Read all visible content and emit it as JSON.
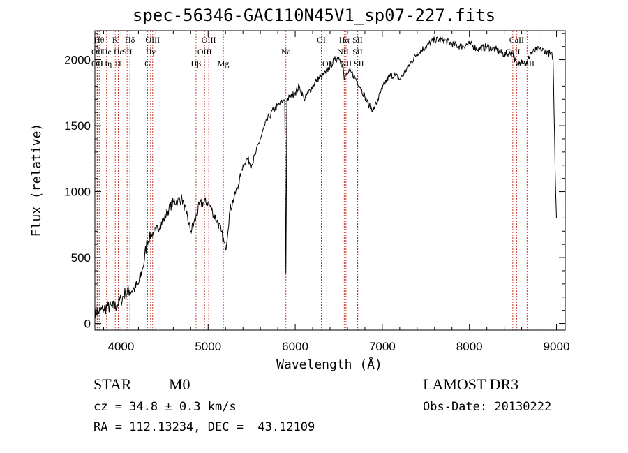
{
  "chart_data": {
    "type": "line",
    "title": "spec-56346-GAC110N45V1_sp07-227.fits",
    "xlabel": "Wavelength (Å)",
    "ylabel": "Flux (relative)",
    "xlim": [
      3700,
      9100
    ],
    "ylim": [
      -50,
      2220
    ],
    "xticks": [
      4000,
      5000,
      6000,
      7000,
      8000,
      9000
    ],
    "yticks": [
      0,
      500,
      1000,
      1500,
      2000
    ],
    "series": [
      {
        "name": "flux",
        "x": [
          3700,
          3750,
          3800,
          3850,
          3900,
          3950,
          4000,
          4050,
          4100,
          4150,
          4200,
          4250,
          4300,
          4350,
          4400,
          4450,
          4500,
          4550,
          4600,
          4650,
          4700,
          4750,
          4800,
          4850,
          4900,
          4950,
          5000,
          5050,
          5100,
          5150,
          5200,
          5250,
          5300,
          5350,
          5400,
          5450,
          5500,
          5550,
          5600,
          5650,
          5700,
          5750,
          5800,
          5850,
          5880,
          5893,
          5905,
          5950,
          6000,
          6050,
          6100,
          6150,
          6200,
          6250,
          6300,
          6350,
          6400,
          6450,
          6500,
          6550,
          6563,
          6600,
          6650,
          6700,
          6750,
          6800,
          6850,
          6900,
          6950,
          7000,
          7050,
          7100,
          7150,
          7200,
          7250,
          7300,
          7400,
          7500,
          7600,
          7700,
          7800,
          7900,
          8000,
          8100,
          8200,
          8300,
          8400,
          8500,
          8542,
          8600,
          8662,
          8700,
          8800,
          8900,
          8960,
          8990,
          9000
        ],
        "y": [
          100,
          90,
          110,
          130,
          120,
          140,
          180,
          230,
          250,
          260,
          300,
          420,
          620,
          680,
          700,
          750,
          800,
          870,
          920,
          930,
          950,
          830,
          700,
          780,
          900,
          920,
          920,
          850,
          780,
          700,
          560,
          860,
          960,
          1060,
          1200,
          1250,
          1200,
          1300,
          1400,
          1500,
          1570,
          1620,
          1650,
          1680,
          1700,
          380,
          1700,
          1720,
          1750,
          1800,
          1700,
          1750,
          1800,
          1850,
          1870,
          1900,
          1950,
          2000,
          2020,
          1950,
          1850,
          1900,
          1900,
          1850,
          1790,
          1720,
          1650,
          1620,
          1700,
          1780,
          1850,
          1880,
          1880,
          1850,
          1900,
          1950,
          2050,
          2100,
          2150,
          2150,
          2120,
          2100,
          2120,
          2080,
          2100,
          2080,
          2040,
          2050,
          1950,
          2000,
          1970,
          2050,
          2080,
          2060,
          2020,
          1000,
          800
        ]
      }
    ],
    "line_markers": [
      {
        "label": "Hθ",
        "x": 3750,
        "row": 1
      },
      {
        "label": "OII",
        "x": 3727,
        "row": 2
      },
      {
        "label": "OII",
        "x": 3727,
        "row": 3
      },
      {
        "label": "He",
        "x": 3835,
        "row": 2
      },
      {
        "label": "Hη",
        "x": 3835,
        "row": 3
      },
      {
        "label": "K",
        "x": 3934,
        "row": 1
      },
      {
        "label": "H",
        "x": 3968,
        "row": 3
      },
      {
        "label": "Hε",
        "x": 3970,
        "row": 2
      },
      {
        "label": "SII",
        "x": 4070,
        "row": 2
      },
      {
        "label": "Hδ",
        "x": 4102,
        "row": 1
      },
      {
        "label": "OIII",
        "x": 4363,
        "row": 1
      },
      {
        "label": "Hγ",
        "x": 4340,
        "row": 2
      },
      {
        "label": "G",
        "x": 4305,
        "row": 3
      },
      {
        "label": "Hβ",
        "x": 4861,
        "row": 3
      },
      {
        "label": "OIII",
        "x": 4959,
        "row": 2
      },
      {
        "label": "OIII",
        "x": 5007,
        "row": 1
      },
      {
        "label": "Mg",
        "x": 5175,
        "row": 3
      },
      {
        "label": "Na",
        "x": 5893,
        "row": 2
      },
      {
        "label": "OI",
        "x": 6300,
        "row": 1
      },
      {
        "label": "OI",
        "x": 6363,
        "row": 3
      },
      {
        "label": "Hα",
        "x": 6563,
        "row": 1
      },
      {
        "label": "NII",
        "x": 6548,
        "row": 2
      },
      {
        "label": "NII",
        "x": 6583,
        "row": 3
      },
      {
        "label": "SII",
        "x": 6716,
        "row": 1
      },
      {
        "label": "SII",
        "x": 6716,
        "row": 2
      },
      {
        "label": "SII",
        "x": 6731,
        "row": 3
      },
      {
        "label": "CaII",
        "x": 8542,
        "row": 1
      },
      {
        "label": "CaII",
        "x": 8498,
        "row": 2
      },
      {
        "label": "CaII",
        "x": 8662,
        "row": 3
      }
    ]
  },
  "footer": {
    "class": "STAR",
    "subclass": "M0",
    "redshift": "cz = 34.8 ± 0.3 km/s",
    "coords": "RA = 112.13234, DEC =  43.12109",
    "survey": "LAMOST DR3",
    "obs_date": "Obs-Date: 20130222"
  },
  "colors": {
    "line": "#000000",
    "marker": "#c0392b"
  }
}
